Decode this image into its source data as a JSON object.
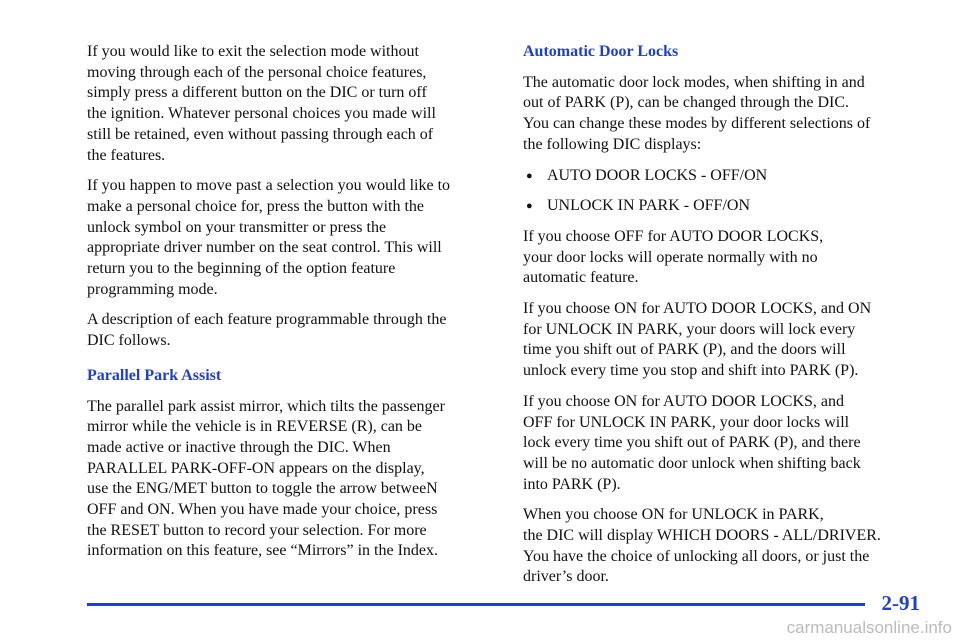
{
  "left_column": {
    "intro_paragraphs": [
      [
        "If you would like to exit the selection mode without",
        "moving through each of the personal choice features,",
        "simply press a different button on the DIC or turn off",
        "the ignition. Whatever personal choices you made will",
        "still be retained, even without passing through each of",
        "the features."
      ],
      [
        "If you happen to move past a selection you would like to",
        "make a personal choice for, press the button with the",
        "unlock symbol on your transmitter or press the",
        "appropriate driver number on the seat control. This will",
        "return you to the beginning of the option feature",
        "programming mode."
      ],
      [
        "A description of each feature programmable through the",
        "DIC follows."
      ]
    ],
    "heading": "Parallel Park Assist",
    "body_paragraphs": [
      [
        "The parallel park assist mirror, which tilts the passenger",
        "mirror while the vehicle is in REVERSE (R), can be",
        "made active or inactive through the DIC. When",
        "PARALLEL PARK-OFF-ON appears on the display,",
        "use the ENG/MET button to toggle the arrow betweeN",
        "OFF and ON. When you have made your choice, press",
        "the RESET button to record your selection. For more",
        "information on this feature, see “Mirrors” in the Index."
      ]
    ]
  },
  "right_column": {
    "heading": "Automatic Door Locks",
    "intro_paragraph": [
      "The automatic door lock modes, when shifting in and",
      "out of PARK (P), can be changed through the DIC.",
      "You can change these modes by different selections of",
      "the following DIC displays:"
    ],
    "bullets": [
      "AUTO DOOR LOCKS - OFF/ON",
      "UNLOCK IN PARK - OFF/ON"
    ],
    "paragraphs": [
      [
        "If you choose OFF for AUTO DOOR LOCKS,",
        "your door locks will operate normally with no",
        "automatic feature."
      ],
      [
        "If you choose ON for AUTO DOOR LOCKS, and ON",
        "for UNLOCK IN PARK, your doors will lock every",
        "time you shift out of PARK (P), and the doors will",
        "unlock every time you stop and shift into PARK (P)."
      ],
      [
        "If you choose ON for AUTO DOOR LOCKS, and",
        "OFF for UNLOCK IN PARK, your door locks will",
        "lock every time you shift out of PARK (P), and there",
        "will be no automatic door unlock when shifting back",
        "into PARK (P)."
      ],
      [
        "When you choose ON for UNLOCK in PARK,",
        "the DIC will display WHICH DOORS - ALL/DRIVER.",
        "You have the choice of unlocking all doors, or just the",
        "driver’s door."
      ]
    ]
  },
  "footer": {
    "page_number": "2-91",
    "watermark": "carmanualsonline.info"
  }
}
